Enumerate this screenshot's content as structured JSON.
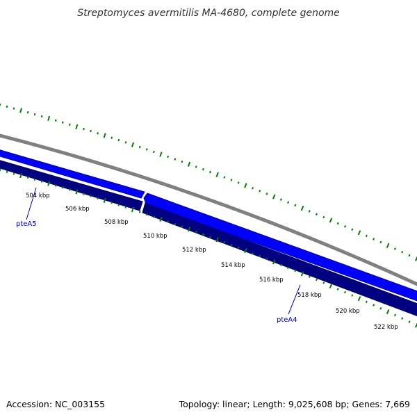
{
  "title": "Streptomyces avermitilis MA-4680, complete genome",
  "footer": {
    "accession": "Accession: NC_003155",
    "summary": "Topology: linear; Length: 9,025,608 bp; Genes: 7,669"
  },
  "tick_labels": [
    "504 kbp",
    "506 kbp",
    "508 kbp",
    "510 kbp",
    "512 kbp",
    "514 kbp",
    "516 kbp",
    "518 kbp",
    "520 kbp",
    "522 kbp"
  ],
  "genes": [
    {
      "name": "pteA5"
    },
    {
      "name": "pteA4"
    }
  ],
  "colors": {
    "backbone": "#808080",
    "forward_strand": "#0000ff",
    "forward_strand_dark": "#0000cc",
    "reverse_strand": "#000080",
    "tick_marks": "#008000",
    "gene_label": "#0000cc"
  }
}
